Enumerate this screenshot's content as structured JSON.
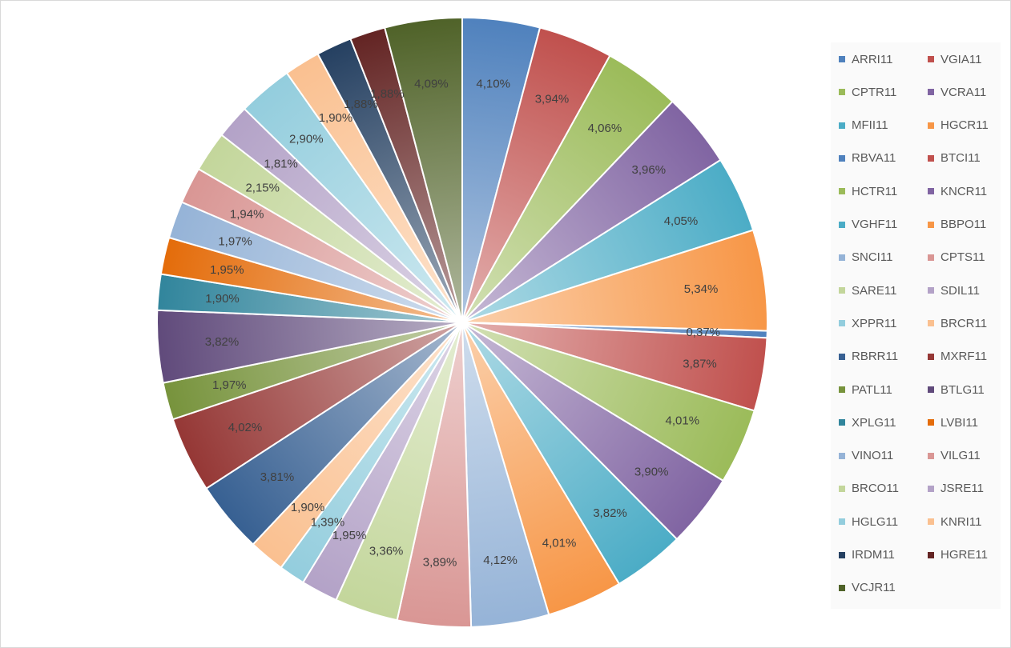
{
  "chart_data": {
    "type": "pie",
    "title": "",
    "categories": [
      "ARRI11",
      "VGIA11",
      "CPTR11",
      "VCRA11",
      "MFII11",
      "HGCR11",
      "RBVA11",
      "BTCI11",
      "HCTR11",
      "KNCR11",
      "VGHF11",
      "BBPO11",
      "SNCI11",
      "CPTS11",
      "SARE11",
      "SDIL11",
      "XPPR11",
      "BRCR11",
      "RBRR11",
      "MXRF11",
      "PATL11",
      "BTLG11",
      "XPLG11",
      "LVBI11",
      "VINO11",
      "VILG11",
      "BRCO11",
      "JSRE11",
      "HGLG11",
      "KNRI11",
      "IRDM11",
      "HGRE11",
      "VCJR11"
    ],
    "values": [
      4.1,
      3.94,
      4.06,
      3.96,
      4.05,
      5.34,
      0.37,
      3.87,
      4.01,
      3.9,
      3.82,
      4.01,
      4.12,
      3.89,
      3.36,
      1.95,
      1.39,
      1.9,
      3.81,
      4.02,
      1.97,
      3.82,
      1.9,
      1.95,
      1.97,
      1.94,
      2.15,
      1.81,
      2.9,
      1.9,
      1.88,
      1.88,
      4.09
    ],
    "data_labels": [
      "4,10%",
      "3,94%",
      "4,06%",
      "3,96%",
      "4,05%",
      "5,34%",
      "0,37%",
      "3,87%",
      "4,01%",
      "3,90%",
      "3,82%",
      "4,01%",
      "4,12%",
      "3,89%",
      "3,36%",
      "1,95%",
      "1,39%",
      "1,90%",
      "3,81%",
      "4,02%",
      "1,97%",
      "3,82%",
      "1,90%",
      "1,95%",
      "1,97%",
      "1,94%",
      "2,15%",
      "1,81%",
      "2,90%",
      "1,90%",
      "1,88%",
      "1,88%",
      "4,09%"
    ],
    "colors": [
      "#4f81bd",
      "#c0504d",
      "#9bbb59",
      "#8064a2",
      "#4bacc6",
      "#f79646",
      "#4f81bd",
      "#c0504d",
      "#9bbb59",
      "#8064a2",
      "#4bacc6",
      "#f79646",
      "#95b3d7",
      "#d99694",
      "#c3d69b",
      "#b3a2c7",
      "#93cddd",
      "#fac090",
      "#376092",
      "#953735",
      "#77933c",
      "#604a7b",
      "#31859c",
      "#e46c0a",
      "#95b3d7",
      "#d99694",
      "#c3d69b",
      "#b3a2c7",
      "#93cddd",
      "#fac090",
      "#254061",
      "#632423",
      "#4f6228"
    ],
    "legend_position": "right",
    "start_angle": "top, clockwise"
  }
}
